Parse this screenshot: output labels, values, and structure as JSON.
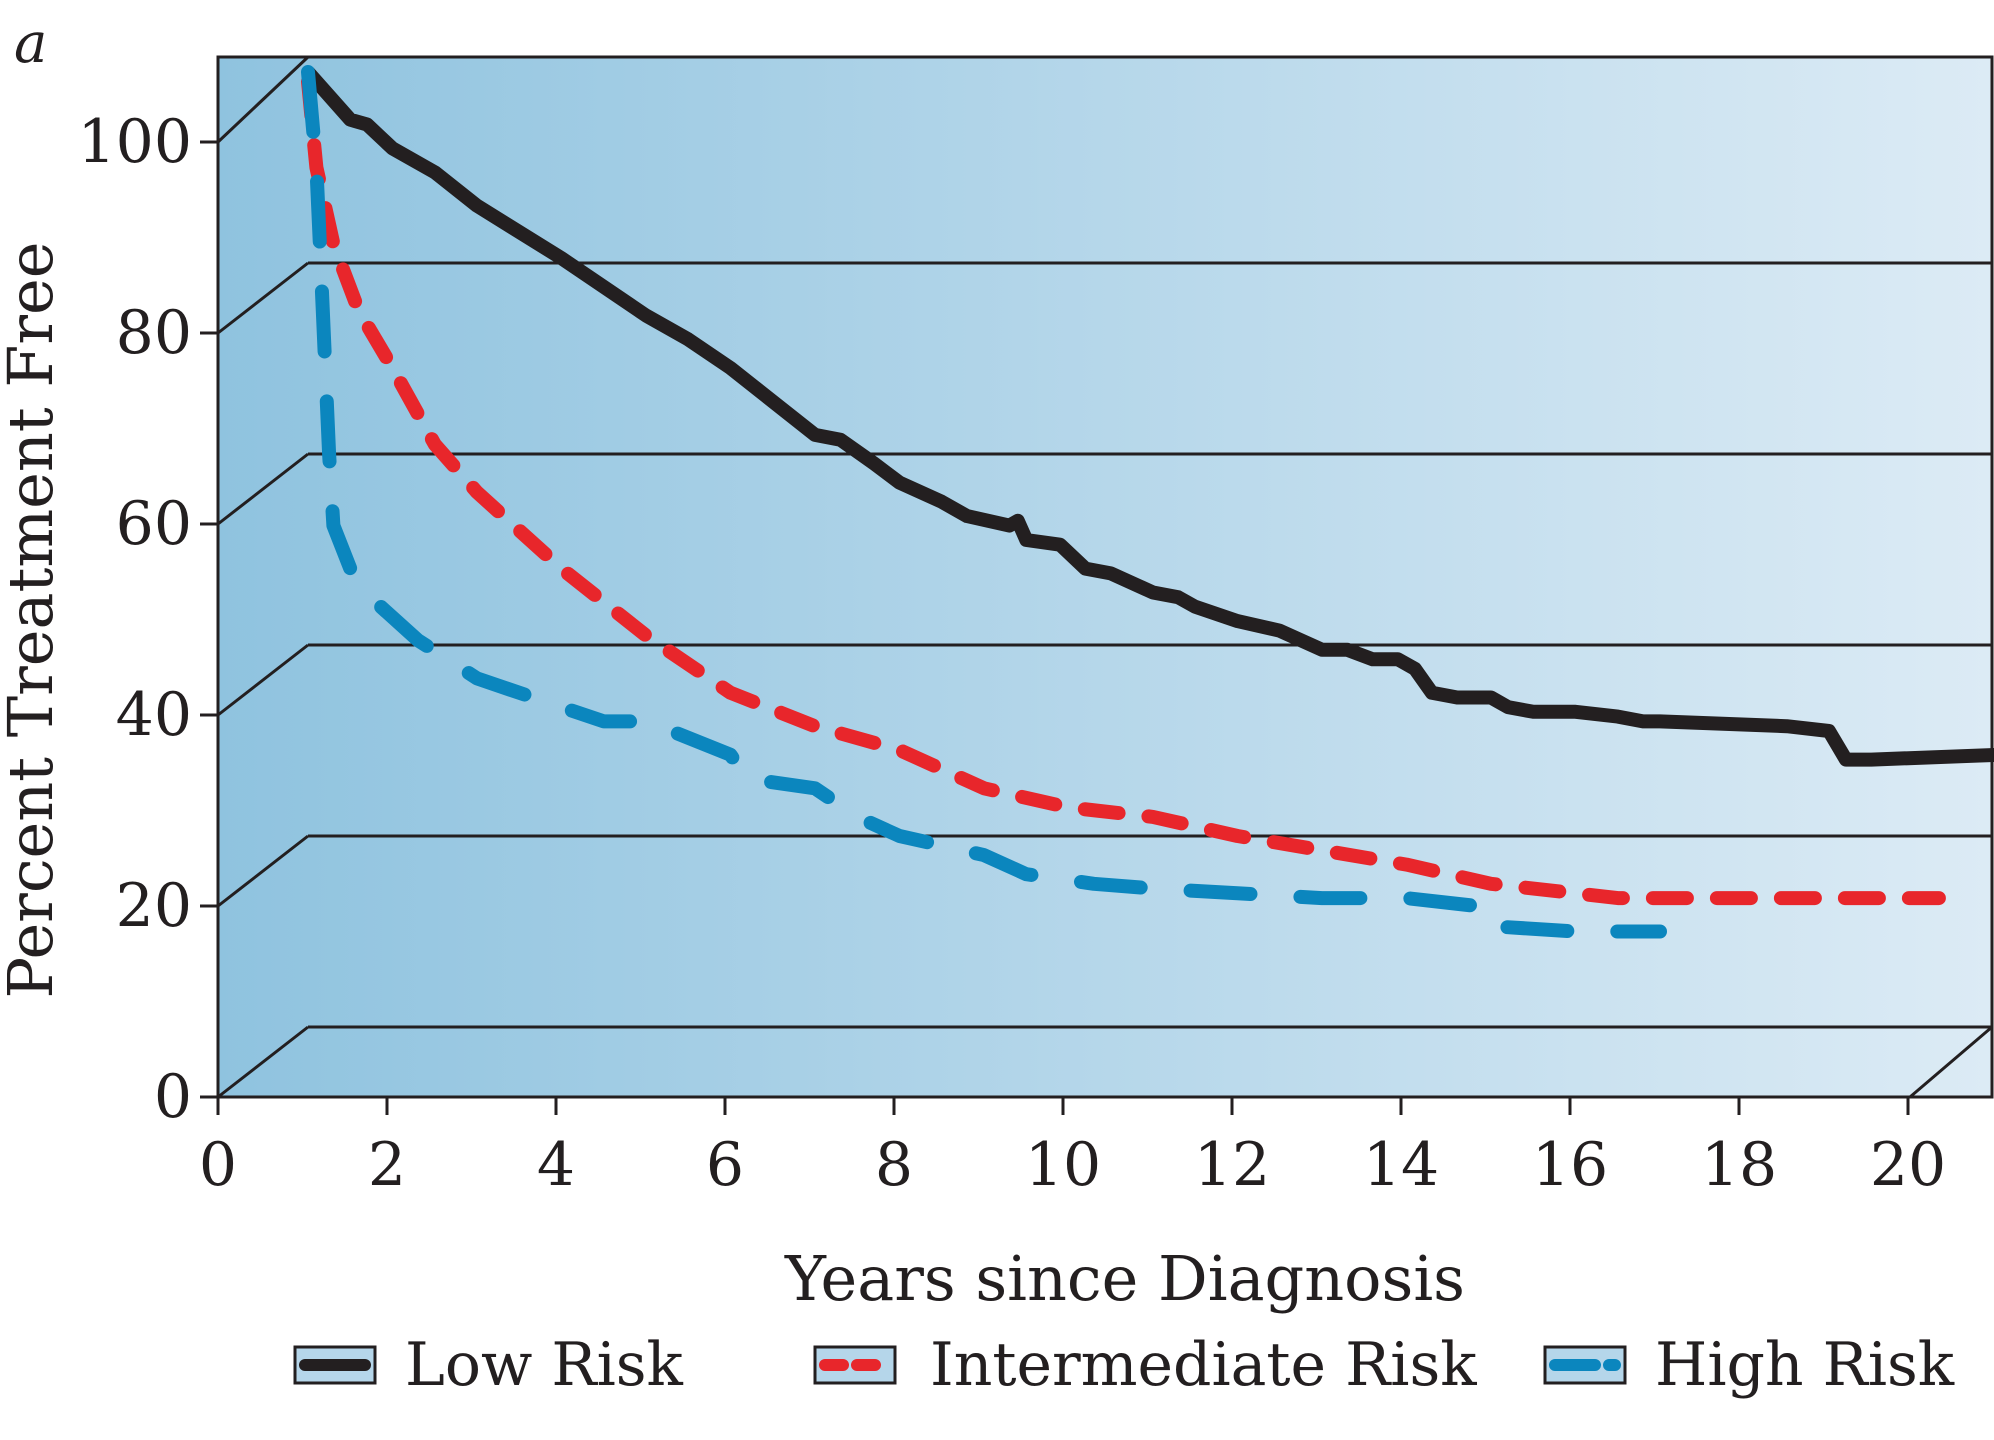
{
  "panel_label": "a",
  "chart_data": {
    "type": "line",
    "title": "",
    "xlabel": "Years since Diagnosis",
    "ylabel": "Percent Treatment Free",
    "xlim": [
      0,
      20
    ],
    "ylim": [
      0,
      100
    ],
    "x_ticks": [
      "0",
      "2",
      "4",
      "6",
      "8",
      "10",
      "12",
      "14",
      "16",
      "18",
      "20"
    ],
    "y_ticks": [
      "0",
      "20",
      "40",
      "60",
      "80",
      "100"
    ],
    "grid": true,
    "style": "3d-perspective",
    "legend_position": "bottom",
    "background_gradient": [
      "#8fc3df",
      "#dcebf5"
    ],
    "series": [
      {
        "name": "Low Risk",
        "color": "#231f20",
        "dash": "solid",
        "points": [
          [
            0,
            100
          ],
          [
            0.5,
            95
          ],
          [
            0.7,
            94.5
          ],
          [
            1,
            92
          ],
          [
            1.5,
            89.5
          ],
          [
            2,
            86
          ],
          [
            3,
            80.5
          ],
          [
            4,
            74.5
          ],
          [
            4.5,
            72
          ],
          [
            5,
            69
          ],
          [
            5.5,
            65.5
          ],
          [
            6,
            62
          ],
          [
            6.3,
            61.5
          ],
          [
            6.7,
            59
          ],
          [
            7,
            57
          ],
          [
            7.5,
            55
          ],
          [
            7.8,
            53.5
          ],
          [
            8.3,
            52.5
          ],
          [
            8.4,
            53
          ],
          [
            8.5,
            51
          ],
          [
            8.9,
            50.5
          ],
          [
            9.2,
            48
          ],
          [
            9.5,
            47.5
          ],
          [
            10,
            45.5
          ],
          [
            10.3,
            45
          ],
          [
            10.5,
            44
          ],
          [
            11,
            42.5
          ],
          [
            11.5,
            41.5
          ],
          [
            12,
            39.5
          ],
          [
            12.3,
            39.5
          ],
          [
            12.6,
            38.5
          ],
          [
            12.9,
            38.5
          ],
          [
            13.1,
            37.5
          ],
          [
            13.3,
            35
          ],
          [
            13.6,
            34.5
          ],
          [
            14,
            34.5
          ],
          [
            14.2,
            33.5
          ],
          [
            14.5,
            33
          ],
          [
            15,
            33
          ],
          [
            15.5,
            32.5
          ],
          [
            15.8,
            32
          ],
          [
            16,
            32
          ],
          [
            17.5,
            31.5
          ],
          [
            18,
            31
          ],
          [
            18.2,
            28
          ],
          [
            18.5,
            28
          ],
          [
            20,
            28.5
          ]
        ]
      },
      {
        "name": "Intermediate Risk",
        "color": "#e8262b",
        "dash": "dashed",
        "points": [
          [
            0,
            99
          ],
          [
            0.1,
            90
          ],
          [
            0.3,
            82
          ],
          [
            0.6,
            75
          ],
          [
            1,
            69
          ],
          [
            1.5,
            61
          ],
          [
            2,
            56
          ],
          [
            3,
            48
          ],
          [
            4,
            41
          ],
          [
            5,
            35
          ],
          [
            6,
            31.5
          ],
          [
            7,
            29
          ],
          [
            8,
            25
          ],
          [
            9,
            23
          ],
          [
            10,
            22
          ],
          [
            11,
            20
          ],
          [
            12,
            18.5
          ],
          [
            13,
            17
          ],
          [
            14,
            15
          ],
          [
            15,
            14
          ],
          [
            15.5,
            13.5
          ],
          [
            17,
            13.5
          ],
          [
            19.3,
            13.5
          ]
        ]
      },
      {
        "name": "High Risk",
        "color": "#0b86be",
        "dash": "dashed",
        "points": [
          [
            0,
            100
          ],
          [
            0.05,
            95
          ],
          [
            0.1,
            90
          ],
          [
            0.15,
            80
          ],
          [
            0.2,
            70
          ],
          [
            0.25,
            60
          ],
          [
            0.3,
            52.5
          ],
          [
            0.5,
            48
          ],
          [
            0.8,
            44.5
          ],
          [
            1.3,
            40.5
          ],
          [
            2,
            36.5
          ],
          [
            2.5,
            35
          ],
          [
            3,
            33.5
          ],
          [
            3.5,
            32
          ],
          [
            4,
            32
          ],
          [
            4.3,
            31
          ],
          [
            5,
            28.5
          ],
          [
            5.2,
            26
          ],
          [
            6,
            25
          ],
          [
            6.5,
            22
          ],
          [
            7,
            20
          ],
          [
            8,
            18
          ],
          [
            8.5,
            16
          ],
          [
            9.3,
            15
          ],
          [
            10,
            14.5
          ],
          [
            11,
            14
          ],
          [
            12,
            13.5
          ],
          [
            13,
            13.5
          ],
          [
            14,
            12.5
          ],
          [
            14.1,
            10.5
          ],
          [
            15,
            10
          ],
          [
            16,
            10
          ]
        ]
      }
    ]
  }
}
